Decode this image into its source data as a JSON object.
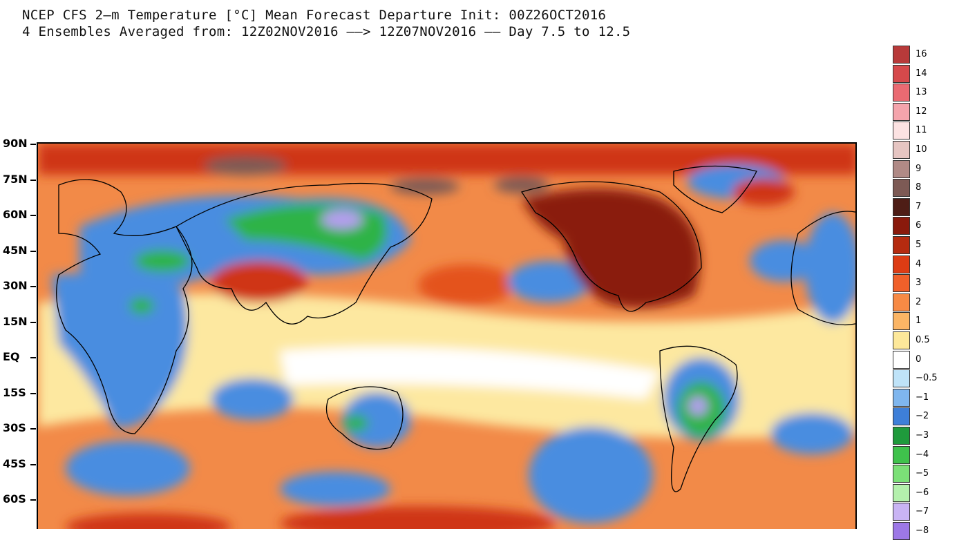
{
  "header": {
    "line1": "NCEP CFS 2—m Temperature [°C] Mean Forecast Departure Init: 00Z26OCT2016",
    "line2": "4 Ensembles Averaged from: 12Z02NOV2016 ——> 12Z07NOV2016 —— Day 7.5 to 12.5"
  },
  "axis": {
    "lat_labels": [
      "90N",
      "75N",
      "60N",
      "45N",
      "30N",
      "15N",
      "EQ",
      "15S",
      "30S",
      "45S",
      "60S"
    ]
  },
  "legend": {
    "entries": [
      {
        "label": "16",
        "color": "#b83a3a"
      },
      {
        "label": "14",
        "color": "#d6494b"
      },
      {
        "label": "13",
        "color": "#ea6a72"
      },
      {
        "label": "12",
        "color": "#f4a4ac"
      },
      {
        "label": "11",
        "color": "#fce2e2"
      },
      {
        "label": "10",
        "color": "#e6c5c2"
      },
      {
        "label": "9",
        "color": "#b08a86"
      },
      {
        "label": "8",
        "color": "#7d5a55"
      },
      {
        "label": "7",
        "color": "#4e1d16"
      },
      {
        "label": "6",
        "color": "#8a1a0c"
      },
      {
        "label": "5",
        "color": "#b52b10"
      },
      {
        "label": "4",
        "color": "#dd3c14"
      },
      {
        "label": "3",
        "color": "#f0602a"
      },
      {
        "label": "2",
        "color": "#f78a45"
      },
      {
        "label": "1",
        "color": "#fbb565"
      },
      {
        "label": "0.5",
        "color": "#fde89a"
      },
      {
        "label": "0",
        "color": "#ffffff"
      },
      {
        "label": "−0.5",
        "color": "#bfe3f8"
      },
      {
        "label": "−1",
        "color": "#7fb6ee"
      },
      {
        "label": "−2",
        "color": "#3e7fd8"
      },
      {
        "label": "−3",
        "color": "#1f9a3c"
      },
      {
        "label": "−4",
        "color": "#3fc24c"
      },
      {
        "label": "−5",
        "color": "#7be077"
      },
      {
        "label": "−6",
        "color": "#b4f0ad"
      },
      {
        "label": "−7",
        "color": "#c9b4f4"
      },
      {
        "label": "−8",
        "color": "#9d78e6"
      }
    ]
  },
  "map_colors": {
    "warm": "#f07a3a",
    "hot": "#cf3613",
    "very_hot": "#8a1a0c",
    "cold": "#4a8de0",
    "light_cold": "#9cc9f4",
    "green": "#2fb347",
    "neutral": "#fde8a0",
    "zero": "#ffffff",
    "brown": "#7d5a55",
    "purple": "#b59ef0"
  }
}
